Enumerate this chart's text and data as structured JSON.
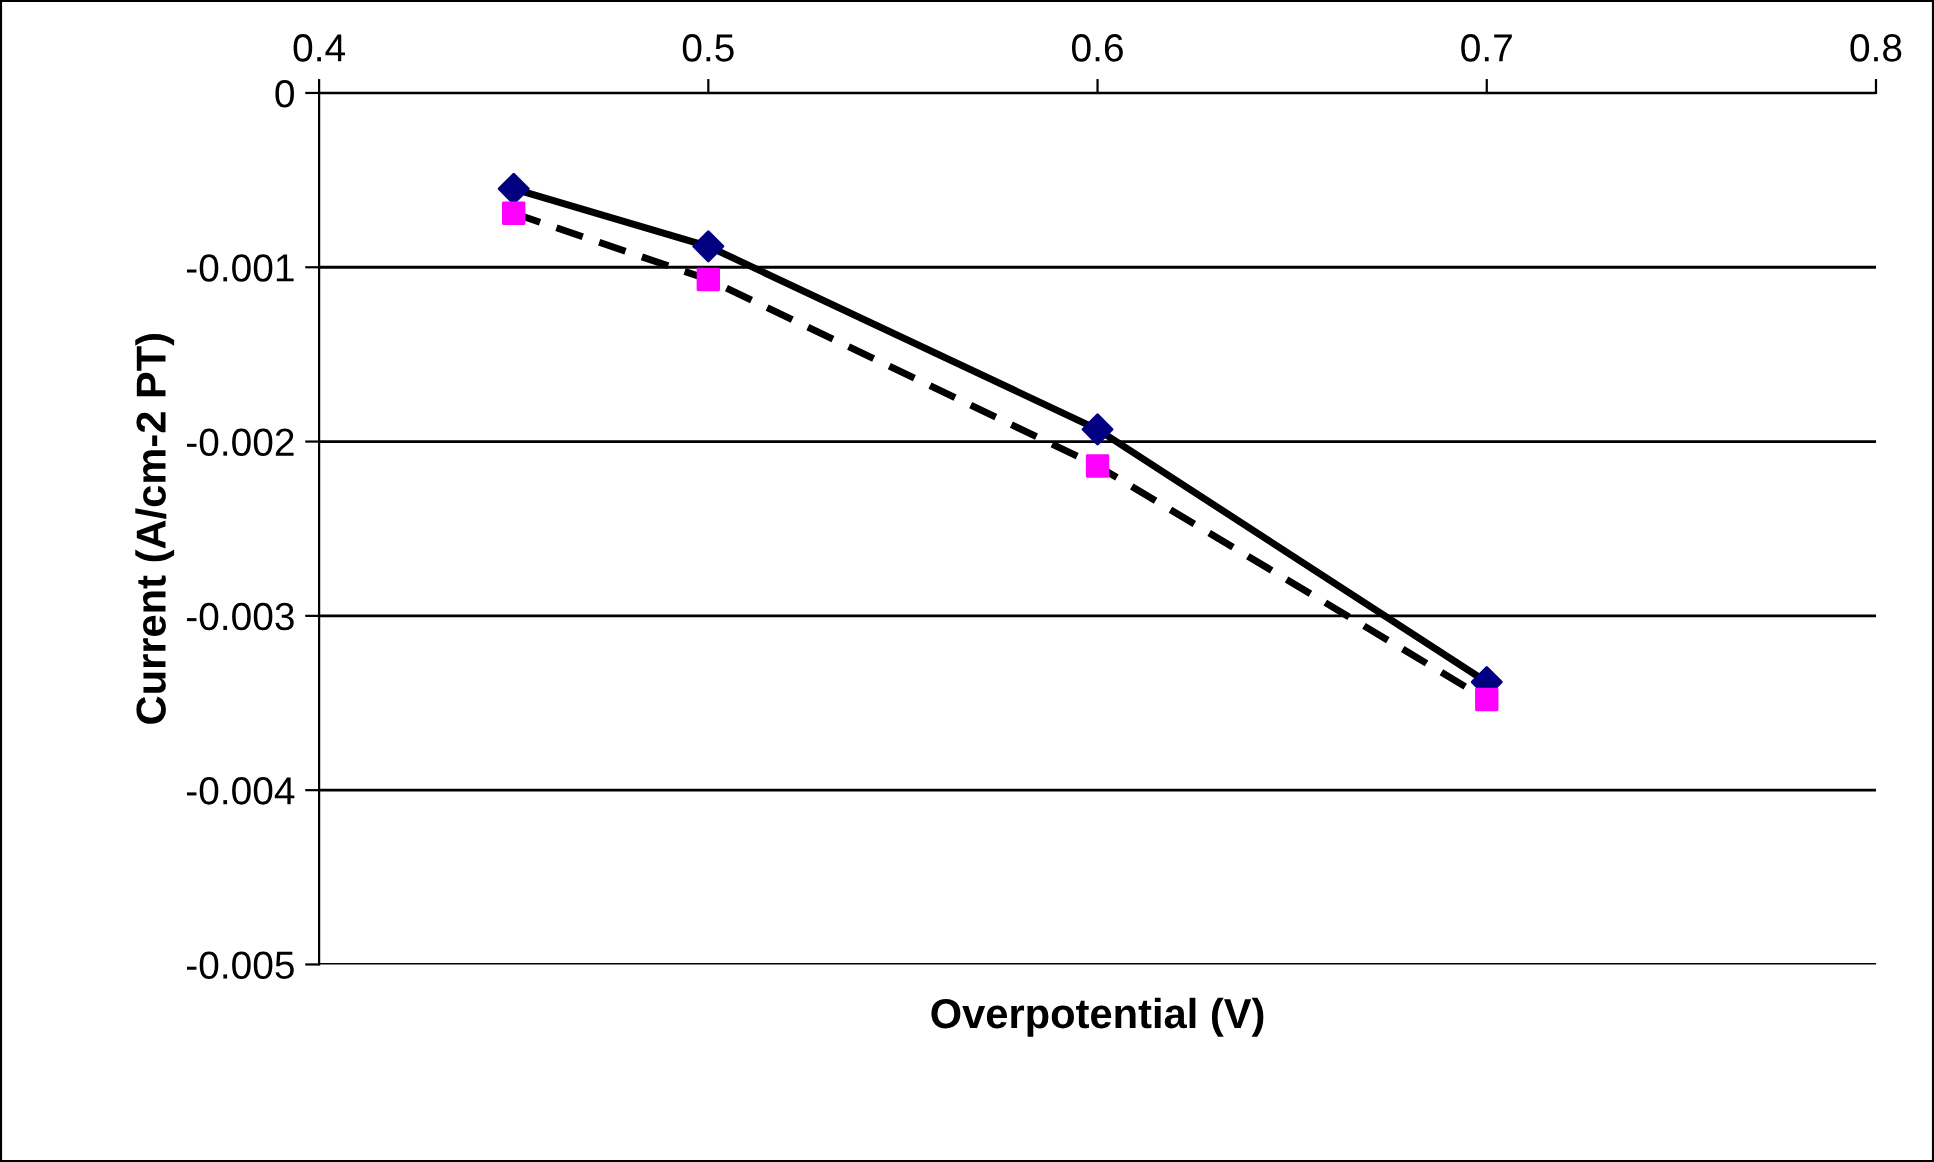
{
  "chart_data": {
    "type": "scatter",
    "xlabel": "Overpotential (V)",
    "ylabel": "Current (A/cm-2 PT)",
    "xlim": [
      0.4,
      0.8
    ],
    "xticks": [
      0.4,
      0.5,
      0.6,
      0.7,
      0.8
    ],
    "ylim": [
      -0.005,
      0
    ],
    "yticks": [
      -0.005,
      -0.004,
      -0.003,
      -0.002,
      -0.001,
      0
    ],
    "grid": "y",
    "legend": false,
    "series": [
      {
        "marker": "diamond",
        "color": "#000080",
        "x": [
          0.45,
          0.5,
          0.6,
          0.7
        ],
        "values": [
          -0.00055,
          -0.00088,
          -0.00193,
          -0.00338
        ]
      },
      {
        "marker": "square",
        "color": "#ff00ff",
        "x": [
          0.45,
          0.5,
          0.6,
          0.7
        ],
        "values": [
          -0.00069,
          -0.00107,
          -0.00214,
          -0.00348
        ]
      },
      {
        "type": "line",
        "line_style": "solid",
        "color": "#000000",
        "x": [
          0.45,
          0.5,
          0.6,
          0.7
        ],
        "values": [
          -0.00055,
          -0.00088,
          -0.00193,
          -0.00338
        ]
      },
      {
        "type": "line",
        "line_style": "dashed",
        "color": "#000000",
        "x": [
          0.45,
          0.5,
          0.6,
          0.7
        ],
        "values": [
          -0.00069,
          -0.00107,
          -0.00214,
          -0.00348
        ]
      }
    ]
  }
}
